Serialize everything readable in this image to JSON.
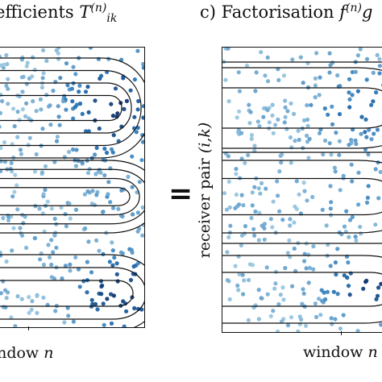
{
  "left_panel": {
    "title_prefix": "efficients ",
    "title_symbol": "T",
    "title_sup": "(n)",
    "title_sub": "ik",
    "xlabel_text": "indow ",
    "xlabel_var": "n"
  },
  "right_panel": {
    "title_prefix": "c) Factorisation ",
    "title_f": "f",
    "title_sup": "(n)",
    "title_g": "g",
    "xlabel_text": "window ",
    "xlabel_var": "n",
    "ylabel_text": "receiver pair ",
    "ylabel_var": "(i,k)"
  },
  "operator": "=",
  "colors": {
    "dark": "#08306b",
    "mid": "#2171b5",
    "light": "#9ecae1",
    "lines": "#111111"
  }
}
